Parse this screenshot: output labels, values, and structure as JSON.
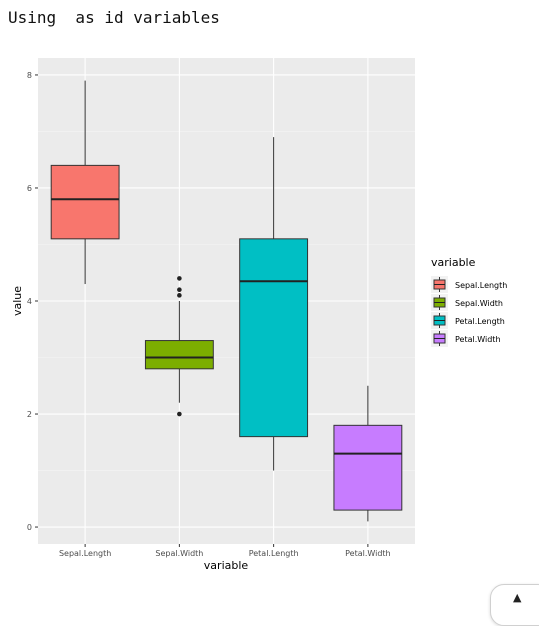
{
  "console": {
    "text": "Using  as id variables"
  },
  "chart_data": {
    "type": "box",
    "xlabel": "variable",
    "ylabel": "value",
    "ylim": [
      -0.3,
      8.3
    ],
    "yticks": [
      0,
      2,
      4,
      6,
      8
    ],
    "categories": [
      "Sepal.Length",
      "Sepal.Width",
      "Petal.Length",
      "Petal.Width"
    ],
    "boxes": [
      {
        "name": "Sepal.Length",
        "min": 4.3,
        "q1": 5.1,
        "median": 5.8,
        "q3": 6.4,
        "max": 7.9,
        "outliers": [],
        "color": "#F8766D"
      },
      {
        "name": "Sepal.Width",
        "min": 2.2,
        "q1": 2.8,
        "median": 3.0,
        "q3": 3.3,
        "max": 4.0,
        "outliers": [
          2.0,
          4.1,
          4.2,
          4.4
        ],
        "color": "#7CAE00"
      },
      {
        "name": "Petal.Length",
        "min": 1.0,
        "q1": 1.6,
        "median": 4.35,
        "q3": 5.1,
        "max": 6.9,
        "outliers": [],
        "color": "#00BFC4"
      },
      {
        "name": "Petal.Width",
        "min": 0.1,
        "q1": 0.3,
        "median": 1.3,
        "q3": 1.8,
        "max": 2.5,
        "outliers": [],
        "color": "#C77CFF"
      }
    ],
    "legend": {
      "title": "variable",
      "position": "right",
      "entries": [
        "Sepal.Length",
        "Sepal.Width",
        "Petal.Length",
        "Petal.Width"
      ]
    },
    "grid": true,
    "panel_background": "#EBEBEB"
  },
  "controls": {
    "scroll_top_icon": "up-triangle-icon",
    "scroll_top_glyph": "▲"
  }
}
